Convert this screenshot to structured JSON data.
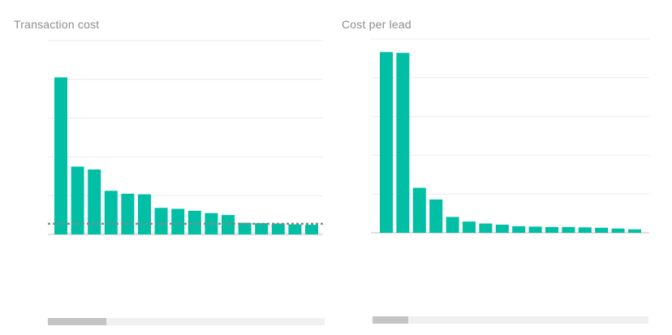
{
  "chart_data": [
    {
      "type": "bar",
      "title": "Transaction cost",
      "categories": [
        "",
        "",
        "",
        "",
        "",
        "",
        "",
        "",
        "",
        "",
        "",
        "",
        "",
        "",
        "",
        ""
      ],
      "values": [
        8.1,
        3.5,
        3.35,
        2.25,
        2.1,
        2.07,
        1.37,
        1.32,
        1.22,
        1.1,
        1.0,
        0.6,
        0.58,
        0.56,
        0.52,
        0.5
      ],
      "ylim": [
        0,
        10
      ],
      "yticks": [
        0,
        2,
        4,
        6,
        8,
        10
      ],
      "ytick_labels": [
        "",
        "",
        "",
        "",
        "",
        ""
      ],
      "reference_line": 0.55,
      "grid": true,
      "color": "#00bfa5",
      "reference_color": "#888888",
      "scrollbar_position": 0.0,
      "scrollbar_visible_fraction": 0.21
    },
    {
      "type": "bar",
      "title": "Cost per lead",
      "categories": [
        "",
        "",
        "",
        "",
        "",
        "",
        "",
        "",
        "",
        "",
        "",
        "",
        "",
        "",
        "",
        ""
      ],
      "values": [
        23.3,
        23.2,
        5.8,
        4.3,
        2.05,
        1.45,
        1.2,
        1.05,
        0.85,
        0.8,
        0.75,
        0.75,
        0.7,
        0.65,
        0.55,
        0.45
      ],
      "ylim": [
        0,
        25
      ],
      "yticks": [
        0,
        5,
        10,
        15,
        20,
        25
      ],
      "ytick_labels": [
        "",
        "",
        "",
        "",
        "",
        ""
      ],
      "grid": true,
      "color": "#00bfa5",
      "scrollbar_position": 0.0,
      "scrollbar_visible_fraction": 0.13
    }
  ]
}
